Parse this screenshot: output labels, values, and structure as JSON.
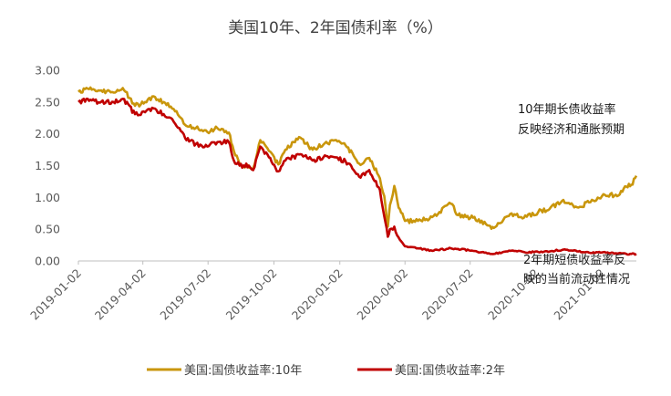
{
  "chart_data": {
    "type": "line",
    "title": "美国10年、2年国债利率（%）",
    "xlabel": "",
    "ylabel": "",
    "ylim": [
      0,
      3
    ],
    "yticks": [
      "0.00",
      "0.50",
      "1.00",
      "1.50",
      "2.00",
      "2.50",
      "3.00"
    ],
    "xticks": [
      "2019-01-02",
      "2019-04-02",
      "2019-07-02",
      "2019-10-02",
      "2020-01-02",
      "2020-04-02",
      "2020-07-02",
      "2020-10-02",
      "2021-01-02"
    ],
    "xrange": [
      "2019-01-02",
      "2021-02-19"
    ],
    "grid": false,
    "legend_position": "bottom",
    "series": [
      {
        "name": "美国:国债收益率:10年",
        "color": "#C9960C",
        "points": [
          [
            "2019-01-02",
            2.66
          ],
          [
            "2019-01-15",
            2.71
          ],
          [
            "2019-02-01",
            2.68
          ],
          [
            "2019-02-20",
            2.65
          ],
          [
            "2019-03-05",
            2.72
          ],
          [
            "2019-03-22",
            2.44
          ],
          [
            "2019-04-05",
            2.5
          ],
          [
            "2019-04-17",
            2.59
          ],
          [
            "2019-05-01",
            2.5
          ],
          [
            "2019-05-15",
            2.39
          ],
          [
            "2019-05-31",
            2.14
          ],
          [
            "2019-06-15",
            2.09
          ],
          [
            "2019-07-01",
            2.03
          ],
          [
            "2019-07-15",
            2.09
          ],
          [
            "2019-07-31",
            2.02
          ],
          [
            "2019-08-07",
            1.73
          ],
          [
            "2019-08-15",
            1.53
          ],
          [
            "2019-08-28",
            1.47
          ],
          [
            "2019-09-03",
            1.46
          ],
          [
            "2019-09-13",
            1.9
          ],
          [
            "2019-09-25",
            1.73
          ],
          [
            "2019-10-08",
            1.52
          ],
          [
            "2019-10-18",
            1.75
          ],
          [
            "2019-11-08",
            1.94
          ],
          [
            "2019-11-25",
            1.75
          ],
          [
            "2019-12-10",
            1.83
          ],
          [
            "2019-12-26",
            1.9
          ],
          [
            "2020-01-10",
            1.82
          ],
          [
            "2020-01-31",
            1.51
          ],
          [
            "2020-02-12",
            1.62
          ],
          [
            "2020-02-27",
            1.3
          ],
          [
            "2020-03-04",
            1.02
          ],
          [
            "2020-03-09",
            0.54
          ],
          [
            "2020-03-12",
            0.88
          ],
          [
            "2020-03-18",
            1.18
          ],
          [
            "2020-03-24",
            0.84
          ],
          [
            "2020-04-02",
            0.63
          ],
          [
            "2020-04-20",
            0.63
          ],
          [
            "2020-05-10",
            0.69
          ],
          [
            "2020-06-05",
            0.9
          ],
          [
            "2020-06-15",
            0.72
          ],
          [
            "2020-07-06",
            0.68
          ],
          [
            "2020-07-30",
            0.55
          ],
          [
            "2020-08-04",
            0.52
          ],
          [
            "2020-08-27",
            0.74
          ],
          [
            "2020-09-15",
            0.68
          ],
          [
            "2020-10-05",
            0.77
          ],
          [
            "2020-10-21",
            0.82
          ],
          [
            "2020-11-09",
            0.96
          ],
          [
            "2020-11-30",
            0.84
          ],
          [
            "2020-12-15",
            0.92
          ],
          [
            "2021-01-06",
            1.04
          ],
          [
            "2021-01-25",
            1.03
          ],
          [
            "2021-02-05",
            1.17
          ],
          [
            "2021-02-12",
            1.2
          ],
          [
            "2021-02-19",
            1.34
          ]
        ]
      },
      {
        "name": "美国:国债收益率:2年",
        "color": "#C00000",
        "points": [
          [
            "2019-01-02",
            2.5
          ],
          [
            "2019-01-15",
            2.55
          ],
          [
            "2019-02-01",
            2.49
          ],
          [
            "2019-02-20",
            2.5
          ],
          [
            "2019-03-05",
            2.55
          ],
          [
            "2019-03-22",
            2.31
          ],
          [
            "2019-04-05",
            2.34
          ],
          [
            "2019-04-17",
            2.4
          ],
          [
            "2019-05-01",
            2.31
          ],
          [
            "2019-05-15",
            2.19
          ],
          [
            "2019-05-31",
            1.93
          ],
          [
            "2019-06-15",
            1.84
          ],
          [
            "2019-07-01",
            1.8
          ],
          [
            "2019-07-15",
            1.87
          ],
          [
            "2019-07-31",
            1.87
          ],
          [
            "2019-08-07",
            1.58
          ],
          [
            "2019-08-15",
            1.5
          ],
          [
            "2019-08-28",
            1.5
          ],
          [
            "2019-09-03",
            1.43
          ],
          [
            "2019-09-13",
            1.8
          ],
          [
            "2019-09-25",
            1.63
          ],
          [
            "2019-10-08",
            1.41
          ],
          [
            "2019-10-18",
            1.58
          ],
          [
            "2019-11-08",
            1.68
          ],
          [
            "2019-11-25",
            1.58
          ],
          [
            "2019-12-10",
            1.63
          ],
          [
            "2019-12-26",
            1.63
          ],
          [
            "2020-01-10",
            1.57
          ],
          [
            "2020-01-31",
            1.31
          ],
          [
            "2020-02-12",
            1.43
          ],
          [
            "2020-02-27",
            1.12
          ],
          [
            "2020-03-04",
            0.7
          ],
          [
            "2020-03-09",
            0.38
          ],
          [
            "2020-03-12",
            0.5
          ],
          [
            "2020-03-18",
            0.54
          ],
          [
            "2020-03-24",
            0.37
          ],
          [
            "2020-04-02",
            0.23
          ],
          [
            "2020-04-20",
            0.2
          ],
          [
            "2020-05-10",
            0.16
          ],
          [
            "2020-06-05",
            0.2
          ],
          [
            "2020-06-15",
            0.19
          ],
          [
            "2020-07-06",
            0.16
          ],
          [
            "2020-07-30",
            0.11
          ],
          [
            "2020-08-04",
            0.11
          ],
          [
            "2020-08-27",
            0.16
          ],
          [
            "2020-09-15",
            0.14
          ],
          [
            "2020-10-05",
            0.14
          ],
          [
            "2020-10-21",
            0.15
          ],
          [
            "2020-11-09",
            0.18
          ],
          [
            "2020-11-30",
            0.15
          ],
          [
            "2020-12-15",
            0.13
          ],
          [
            "2021-01-06",
            0.14
          ],
          [
            "2021-01-25",
            0.12
          ],
          [
            "2021-02-05",
            0.11
          ],
          [
            "2021-02-12",
            0.11
          ],
          [
            "2021-02-19",
            0.11
          ]
        ]
      }
    ],
    "annotations": [
      {
        "lines": [
          "10年期长债收益率",
          "反映经济和通胀预期"
        ]
      },
      {
        "lines": [
          "2年期短债收益率反",
          "映的当前流动性情况"
        ]
      }
    ]
  }
}
